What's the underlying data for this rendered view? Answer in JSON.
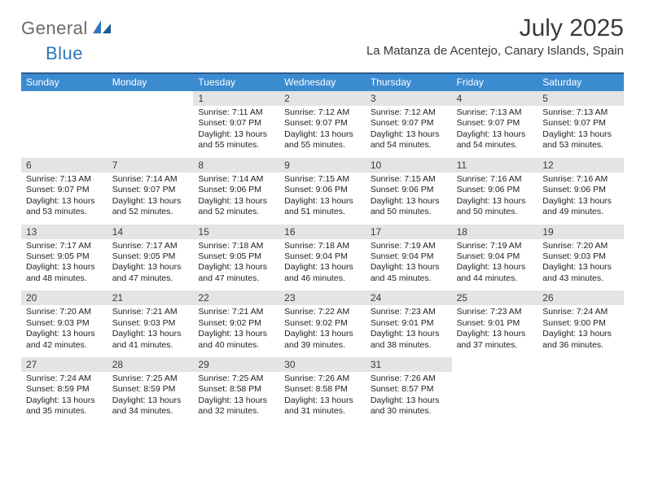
{
  "logo": {
    "general": "General",
    "blue": "Blue"
  },
  "title": "July 2025",
  "location": "La Matanza de Acentejo, Canary Islands, Spain",
  "dow": [
    "Sunday",
    "Monday",
    "Tuesday",
    "Wednesday",
    "Thursday",
    "Friday",
    "Saturday"
  ],
  "colors": {
    "headerBar": "#3b8bd0",
    "topRule": "#305a8c",
    "dayBand": "#e4e4e4",
    "text": "#3a3a3a",
    "logoGray": "#6a6a6a",
    "logoBlue": "#2f77bb",
    "background": "#ffffff"
  },
  "weeks": [
    [
      {
        "n": "",
        "sr": "",
        "ss": "",
        "dl": ""
      },
      {
        "n": "",
        "sr": "",
        "ss": "",
        "dl": ""
      },
      {
        "n": "1",
        "sr": "Sunrise: 7:11 AM",
        "ss": "Sunset: 9:07 PM",
        "dl": "Daylight: 13 hours and 55 minutes."
      },
      {
        "n": "2",
        "sr": "Sunrise: 7:12 AM",
        "ss": "Sunset: 9:07 PM",
        "dl": "Daylight: 13 hours and 55 minutes."
      },
      {
        "n": "3",
        "sr": "Sunrise: 7:12 AM",
        "ss": "Sunset: 9:07 PM",
        "dl": "Daylight: 13 hours and 54 minutes."
      },
      {
        "n": "4",
        "sr": "Sunrise: 7:13 AM",
        "ss": "Sunset: 9:07 PM",
        "dl": "Daylight: 13 hours and 54 minutes."
      },
      {
        "n": "5",
        "sr": "Sunrise: 7:13 AM",
        "ss": "Sunset: 9:07 PM",
        "dl": "Daylight: 13 hours and 53 minutes."
      }
    ],
    [
      {
        "n": "6",
        "sr": "Sunrise: 7:13 AM",
        "ss": "Sunset: 9:07 PM",
        "dl": "Daylight: 13 hours and 53 minutes."
      },
      {
        "n": "7",
        "sr": "Sunrise: 7:14 AM",
        "ss": "Sunset: 9:07 PM",
        "dl": "Daylight: 13 hours and 52 minutes."
      },
      {
        "n": "8",
        "sr": "Sunrise: 7:14 AM",
        "ss": "Sunset: 9:06 PM",
        "dl": "Daylight: 13 hours and 52 minutes."
      },
      {
        "n": "9",
        "sr": "Sunrise: 7:15 AM",
        "ss": "Sunset: 9:06 PM",
        "dl": "Daylight: 13 hours and 51 minutes."
      },
      {
        "n": "10",
        "sr": "Sunrise: 7:15 AM",
        "ss": "Sunset: 9:06 PM",
        "dl": "Daylight: 13 hours and 50 minutes."
      },
      {
        "n": "11",
        "sr": "Sunrise: 7:16 AM",
        "ss": "Sunset: 9:06 PM",
        "dl": "Daylight: 13 hours and 50 minutes."
      },
      {
        "n": "12",
        "sr": "Sunrise: 7:16 AM",
        "ss": "Sunset: 9:06 PM",
        "dl": "Daylight: 13 hours and 49 minutes."
      }
    ],
    [
      {
        "n": "13",
        "sr": "Sunrise: 7:17 AM",
        "ss": "Sunset: 9:05 PM",
        "dl": "Daylight: 13 hours and 48 minutes."
      },
      {
        "n": "14",
        "sr": "Sunrise: 7:17 AM",
        "ss": "Sunset: 9:05 PM",
        "dl": "Daylight: 13 hours and 47 minutes."
      },
      {
        "n": "15",
        "sr": "Sunrise: 7:18 AM",
        "ss": "Sunset: 9:05 PM",
        "dl": "Daylight: 13 hours and 47 minutes."
      },
      {
        "n": "16",
        "sr": "Sunrise: 7:18 AM",
        "ss": "Sunset: 9:04 PM",
        "dl": "Daylight: 13 hours and 46 minutes."
      },
      {
        "n": "17",
        "sr": "Sunrise: 7:19 AM",
        "ss": "Sunset: 9:04 PM",
        "dl": "Daylight: 13 hours and 45 minutes."
      },
      {
        "n": "18",
        "sr": "Sunrise: 7:19 AM",
        "ss": "Sunset: 9:04 PM",
        "dl": "Daylight: 13 hours and 44 minutes."
      },
      {
        "n": "19",
        "sr": "Sunrise: 7:20 AM",
        "ss": "Sunset: 9:03 PM",
        "dl": "Daylight: 13 hours and 43 minutes."
      }
    ],
    [
      {
        "n": "20",
        "sr": "Sunrise: 7:20 AM",
        "ss": "Sunset: 9:03 PM",
        "dl": "Daylight: 13 hours and 42 minutes."
      },
      {
        "n": "21",
        "sr": "Sunrise: 7:21 AM",
        "ss": "Sunset: 9:03 PM",
        "dl": "Daylight: 13 hours and 41 minutes."
      },
      {
        "n": "22",
        "sr": "Sunrise: 7:21 AM",
        "ss": "Sunset: 9:02 PM",
        "dl": "Daylight: 13 hours and 40 minutes."
      },
      {
        "n": "23",
        "sr": "Sunrise: 7:22 AM",
        "ss": "Sunset: 9:02 PM",
        "dl": "Daylight: 13 hours and 39 minutes."
      },
      {
        "n": "24",
        "sr": "Sunrise: 7:23 AM",
        "ss": "Sunset: 9:01 PM",
        "dl": "Daylight: 13 hours and 38 minutes."
      },
      {
        "n": "25",
        "sr": "Sunrise: 7:23 AM",
        "ss": "Sunset: 9:01 PM",
        "dl": "Daylight: 13 hours and 37 minutes."
      },
      {
        "n": "26",
        "sr": "Sunrise: 7:24 AM",
        "ss": "Sunset: 9:00 PM",
        "dl": "Daylight: 13 hours and 36 minutes."
      }
    ],
    [
      {
        "n": "27",
        "sr": "Sunrise: 7:24 AM",
        "ss": "Sunset: 8:59 PM",
        "dl": "Daylight: 13 hours and 35 minutes."
      },
      {
        "n": "28",
        "sr": "Sunrise: 7:25 AM",
        "ss": "Sunset: 8:59 PM",
        "dl": "Daylight: 13 hours and 34 minutes."
      },
      {
        "n": "29",
        "sr": "Sunrise: 7:25 AM",
        "ss": "Sunset: 8:58 PM",
        "dl": "Daylight: 13 hours and 32 minutes."
      },
      {
        "n": "30",
        "sr": "Sunrise: 7:26 AM",
        "ss": "Sunset: 8:58 PM",
        "dl": "Daylight: 13 hours and 31 minutes."
      },
      {
        "n": "31",
        "sr": "Sunrise: 7:26 AM",
        "ss": "Sunset: 8:57 PM",
        "dl": "Daylight: 13 hours and 30 minutes."
      },
      {
        "n": "",
        "sr": "",
        "ss": "",
        "dl": ""
      },
      {
        "n": "",
        "sr": "",
        "ss": "",
        "dl": ""
      }
    ]
  ]
}
